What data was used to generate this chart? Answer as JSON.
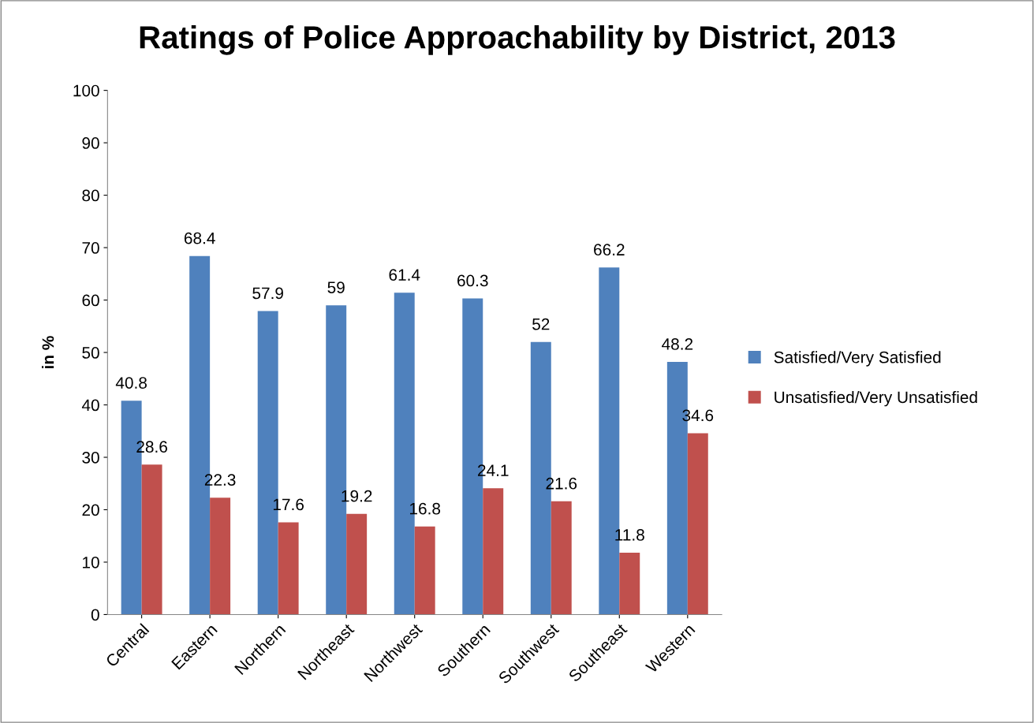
{
  "chart_data": {
    "type": "bar",
    "title": "Ratings of Police Approachability by District, 2013",
    "ylabel": "in %",
    "categories": [
      "Central",
      "Eastern",
      "Northern",
      "Northeast",
      "Northwest",
      "Southern",
      "Southwest",
      "Southeast",
      "Western"
    ],
    "series": [
      {
        "name": "Satisfied/Very Satisfied",
        "color": "#4f81bd",
        "values": [
          40.8,
          68.4,
          57.9,
          59,
          61.4,
          60.3,
          52,
          66.2,
          48.2
        ]
      },
      {
        "name": "Unsatisfied/Very Unsatisfied",
        "color": "#c0504d",
        "values": [
          28.6,
          22.3,
          17.6,
          19.2,
          16.8,
          24.1,
          21.6,
          11.8,
          34.6
        ]
      }
    ],
    "ylim": [
      0,
      100
    ],
    "yticks": [
      0,
      10,
      20,
      30,
      40,
      50,
      60,
      70,
      80,
      90,
      100
    ],
    "grid": false,
    "legend": "right",
    "data_labels": true
  }
}
